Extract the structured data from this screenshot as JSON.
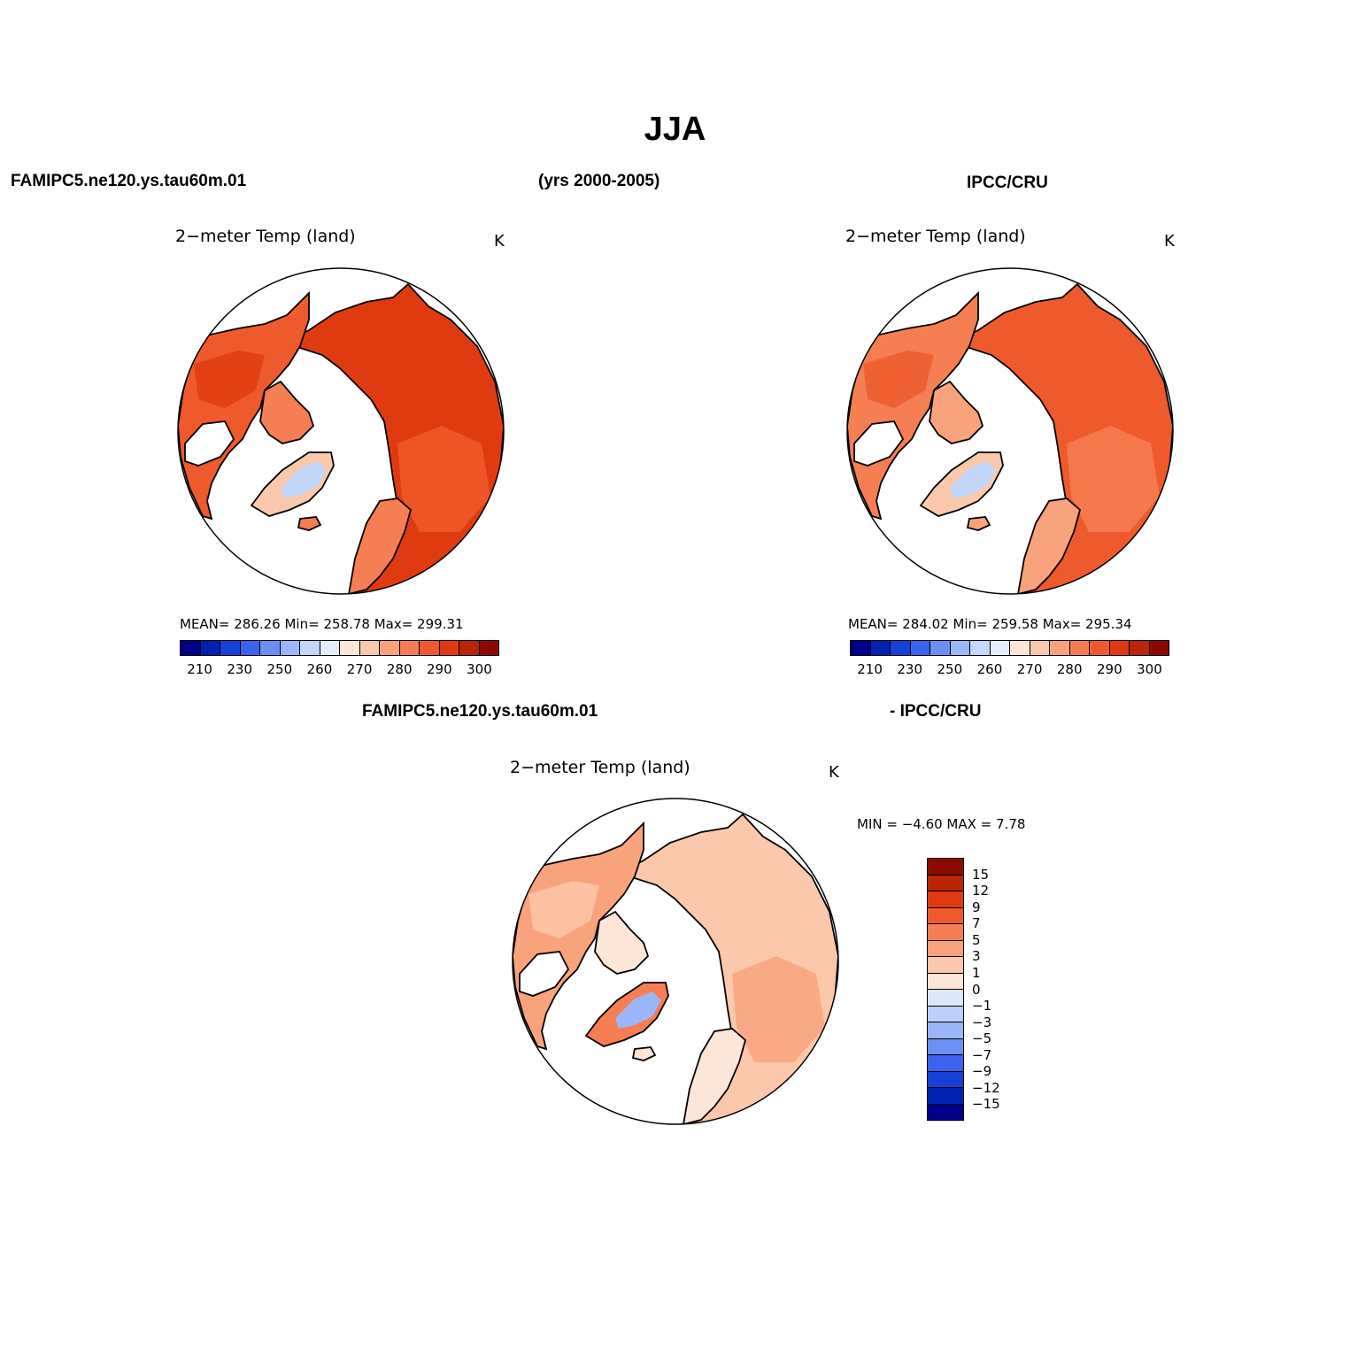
{
  "title": "JJA",
  "header": {
    "left": "FAMIPC5.ne120.ys.tau60m.01",
    "center": "(yrs 2000-2005)",
    "right": "IPCC/CRU"
  },
  "diff_header": {
    "left": "FAMIPC5.ne120.ys.tau60m.01",
    "right": "- IPCC/CRU"
  },
  "panels": [
    {
      "id": "model",
      "title": "2−meter Temp (land)",
      "units": "K",
      "stats": "MEAN= 286.26   Min= 258.78   Max= 299.31",
      "chart_data": {
        "type": "heatmap",
        "variable": "2-meter Temp (land)",
        "units": "K",
        "mean": 286.26,
        "min": 258.78,
        "max": 299.31
      }
    },
    {
      "id": "obs",
      "title": "2−meter Temp (land)",
      "units": "K",
      "stats": "MEAN= 284.02   Min= 259.58   Max= 295.34",
      "chart_data": {
        "type": "heatmap",
        "variable": "2-meter Temp (land)",
        "units": "K",
        "mean": 284.02,
        "min": 259.58,
        "max": 295.34
      }
    },
    {
      "id": "diff",
      "title": "2−meter Temp (land)",
      "units": "K",
      "stats": "MIN =   −4.60  MAX =     7.78",
      "chart_data": {
        "type": "heatmap",
        "variable": "2-meter Temp (land) difference",
        "units": "K",
        "min": -4.6,
        "max": 7.78
      }
    }
  ],
  "colorbar_abs": {
    "colors": [
      "#00008b",
      "#0022b0",
      "#1740d8",
      "#3c63f0",
      "#6d8ff5",
      "#9ab6f8",
      "#c3d6fb",
      "#e3eefc",
      "#fde5d8",
      "#fbc8ab",
      "#f8a37c",
      "#f57e52",
      "#ee5a2c",
      "#e03b10",
      "#b82507",
      "#8c0b00"
    ],
    "labels": [
      "210",
      "230",
      "250",
      "260",
      "270",
      "280",
      "290",
      "300"
    ]
  },
  "colorbar_diff": {
    "colors": [
      "#8c0b00",
      "#b82507",
      "#e03b10",
      "#ee5a2c",
      "#f57e52",
      "#f8a37c",
      "#fbc8ab",
      "#fde5d8",
      "#d9e8fb",
      "#bbd0f8",
      "#9ab6f8",
      "#6d8ff5",
      "#3c63f0",
      "#1740d8",
      "#0022b0",
      "#00008b"
    ],
    "labels": [
      "15",
      "12",
      "9",
      "7",
      "5",
      "3",
      "1",
      "0",
      "−1",
      "−3",
      "−5",
      "−7",
      "−9",
      "−12",
      "−15"
    ]
  },
  "map_colors": {
    "model": {
      "warm": "#e03b10",
      "mid": "#ee5a2c",
      "light": "#f57e52",
      "pale": "#fbc8ab",
      "ice": "#c3d6fb"
    },
    "obs": {
      "warm": "#ee5a2c",
      "mid": "#f57e52",
      "light": "#f8a37c",
      "pale": "#fbc8ab",
      "ice": "#c3d6fb"
    },
    "diff": {
      "warm": "#fbc8ab",
      "mid": "#f8a37c",
      "light": "#fde5d8",
      "pale": "#f57e52",
      "ice": "#9ab6f8"
    }
  }
}
